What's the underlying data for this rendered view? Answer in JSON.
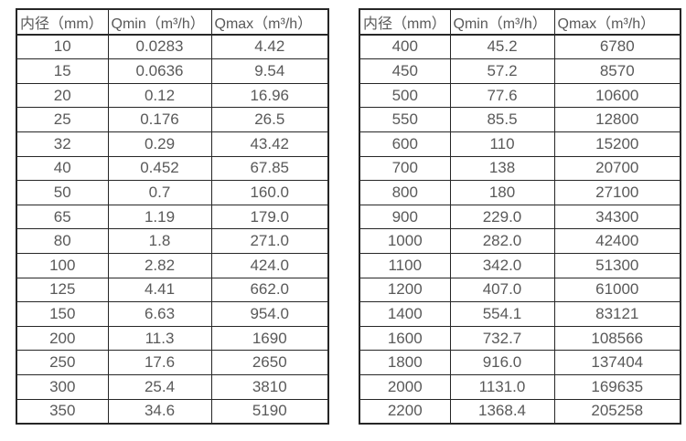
{
  "chart_data": [
    {
      "type": "table",
      "name": "small-diameter-flow-ranges",
      "columns": [
        "内径（mm）",
        "Qmin（m³/h）",
        "Qmax（m³/h）"
      ],
      "rows": [
        [
          "10",
          "0.0283",
          "4.42"
        ],
        [
          "15",
          "0.0636",
          "9.54"
        ],
        [
          "20",
          "0.12",
          "16.96"
        ],
        [
          "25",
          "0.176",
          "26.5"
        ],
        [
          "32",
          "0.29",
          "43.42"
        ],
        [
          "40",
          "0.452",
          "67.85"
        ],
        [
          "50",
          "0.7",
          "160.0"
        ],
        [
          "65",
          "1.19",
          "179.0"
        ],
        [
          "80",
          "1.8",
          "271.0"
        ],
        [
          "100",
          "2.82",
          "424.0"
        ],
        [
          "125",
          "4.41",
          "662.0"
        ],
        [
          "150",
          "6.63",
          "954.0"
        ],
        [
          "200",
          "11.3",
          "1690"
        ],
        [
          "250",
          "17.6",
          "2650"
        ],
        [
          "300",
          "25.4",
          "3810"
        ],
        [
          "350",
          "34.6",
          "5190"
        ]
      ]
    },
    {
      "type": "table",
      "name": "large-diameter-flow-ranges",
      "columns": [
        "内径（mm）",
        "Qmin（m³/h）",
        "Qmax（m³/h）"
      ],
      "rows": [
        [
          "400",
          "45.2",
          "6780"
        ],
        [
          "450",
          "57.2",
          "8570"
        ],
        [
          "500",
          "77.6",
          "10600"
        ],
        [
          "550",
          "85.5",
          "12800"
        ],
        [
          "600",
          "110",
          "15200"
        ],
        [
          "700",
          "138",
          "20700"
        ],
        [
          "800",
          "180",
          "27100"
        ],
        [
          "900",
          "229.0",
          "34300"
        ],
        [
          "1000",
          "282.0",
          "42400"
        ],
        [
          "1100",
          "342.0",
          "51300"
        ],
        [
          "1200",
          "407.0",
          "61000"
        ],
        [
          "1400",
          "554.1",
          "83121"
        ],
        [
          "1600",
          "732.7",
          "108566"
        ],
        [
          "1800",
          "916.0",
          "137404"
        ],
        [
          "2000",
          "1131.0",
          "169635"
        ],
        [
          "2200",
          "1368.4",
          "205258"
        ]
      ]
    }
  ],
  "colors": {
    "text": "#595959",
    "border": "#262626",
    "background": "#ffffff"
  }
}
